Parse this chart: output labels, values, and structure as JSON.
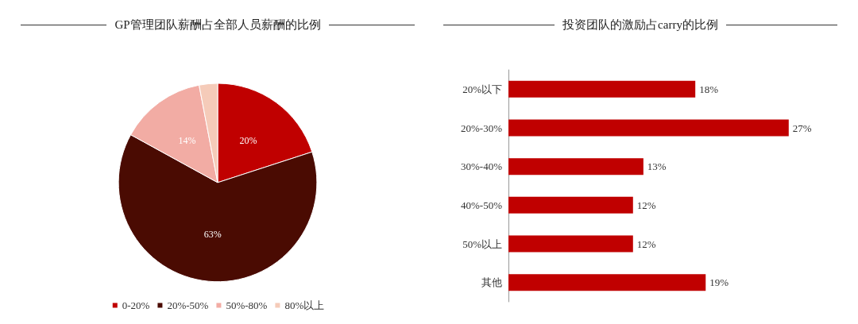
{
  "chart_data": [
    {
      "type": "pie",
      "title": "GP管理团队薪酬占全部人员薪酬的比例",
      "categories": [
        "0-20%",
        "20%-50%",
        "50%-80%",
        "80%以上"
      ],
      "values": [
        20,
        63,
        14,
        3
      ],
      "colors": [
        "#c00000",
        "#4a0b02",
        "#f2aca4",
        "#f5cbb9"
      ],
      "value_labels": [
        "20%",
        "63%",
        "14%",
        null
      ],
      "legend": "bottom"
    },
    {
      "type": "bar",
      "orientation": "horizontal",
      "title": "投资团队的激励占carry的比例",
      "categories": [
        "20%以下",
        "20%-30%",
        "30%-40%",
        "40%-50%",
        "50%以上",
        "其他"
      ],
      "values": [
        18,
        27,
        13,
        12,
        12,
        19
      ],
      "color": "#c00000",
      "value_labels": [
        "18%",
        "27%",
        "13%",
        "12%",
        "12%",
        "19%"
      ]
    }
  ]
}
